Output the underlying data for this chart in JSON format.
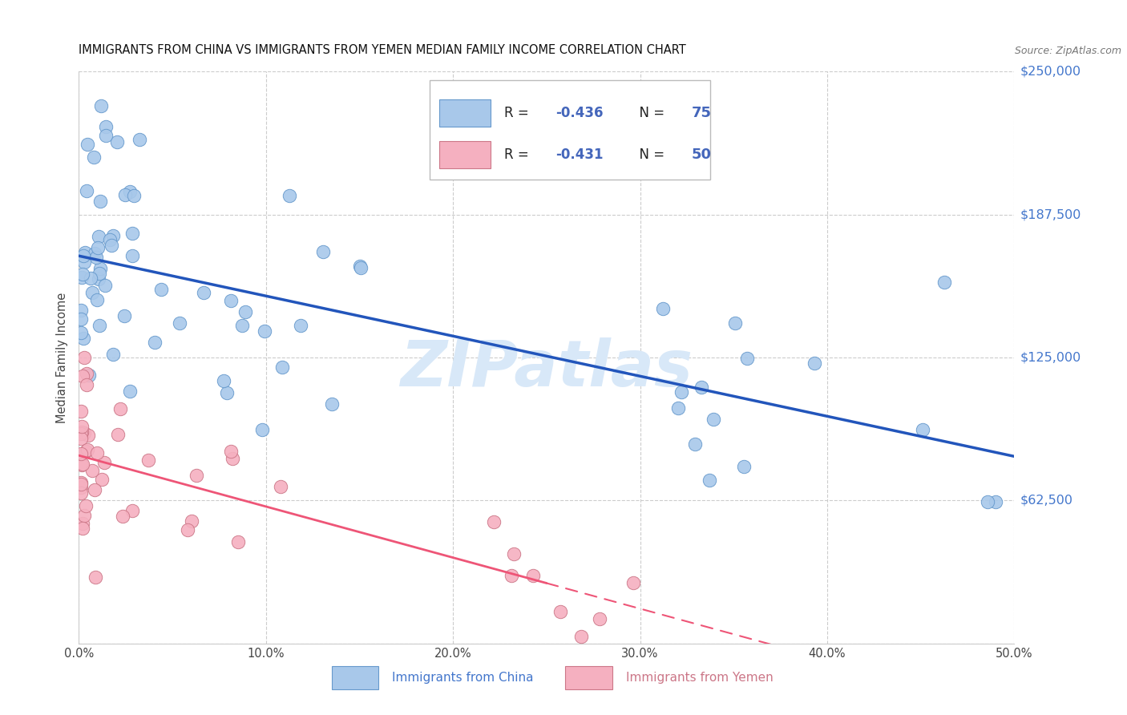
{
  "title": "IMMIGRANTS FROM CHINA VS IMMIGRANTS FROM YEMEN MEDIAN FAMILY INCOME CORRELATION CHART",
  "source": "Source: ZipAtlas.com",
  "ylabel": "Median Family Income",
  "china_color": "#a8c8ea",
  "china_edge": "#6699cc",
  "yemen_color": "#f5b0c0",
  "yemen_edge": "#cc7788",
  "china_line_color": "#2255bb",
  "yemen_line_color": "#ee5577",
  "right_label_color": "#4477cc",
  "legend_text_color": "#4466bb",
  "watermark": "ZIPatlas",
  "watermark_color": "#d8e8f8",
  "xmin": 0.0,
  "xmax": 0.5,
  "ymin": 0,
  "ymax": 250000,
  "china_R": "-0.436",
  "china_N": "75",
  "yemen_R": "-0.431",
  "yemen_N": "50",
  "legend_label1": "Immigrants from China",
  "legend_label2": "Immigrants from Yemen",
  "bg_color": "#ffffff",
  "grid_color": "#cccccc",
  "title_color": "#111111",
  "source_color": "#777777",
  "title_fontsize": 10.5,
  "right_yticks": [
    62500,
    125000,
    187500,
    250000
  ],
  "right_yticklabels": [
    "$62,500",
    "$125,000",
    "$187,500",
    "$250,000"
  ]
}
